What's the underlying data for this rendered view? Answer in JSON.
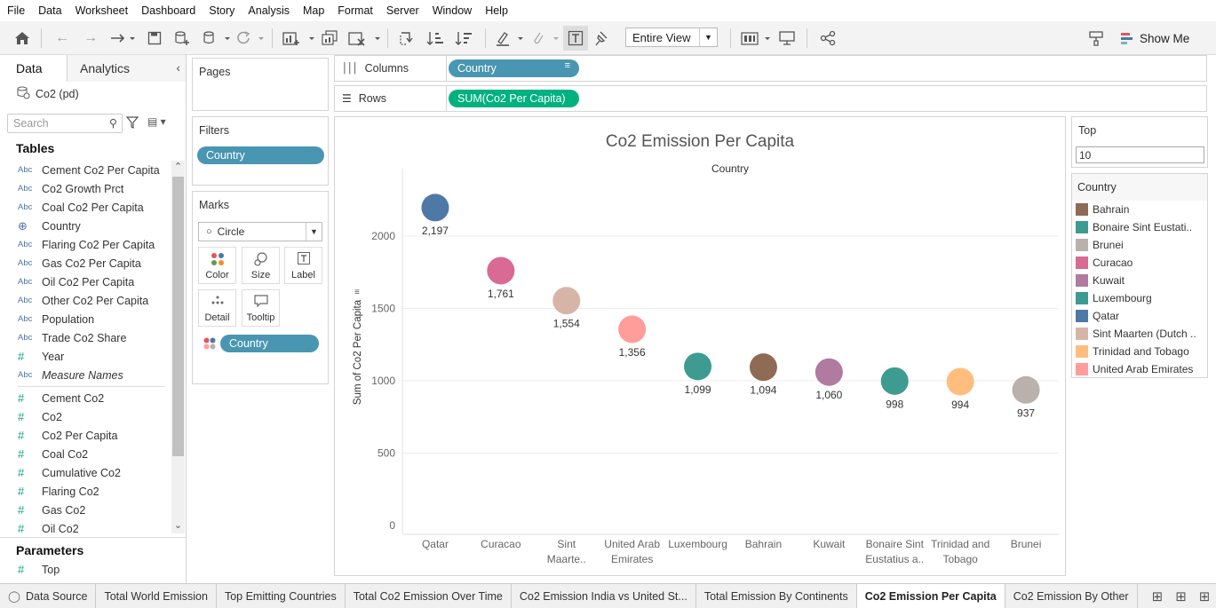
{
  "menu": [
    "File",
    "Data",
    "Worksheet",
    "Dashboard",
    "Story",
    "Analysis",
    "Map",
    "Format",
    "Server",
    "Window",
    "Help"
  ],
  "toolbar": {
    "fit_label": "Entire View",
    "show_me": "Show Me"
  },
  "left_pane": {
    "tab_data": "Data",
    "tab_analytics": "Analytics",
    "datasource": "Co2 (pd)",
    "search_placeholder": "Search",
    "tables_heading": "Tables",
    "fields": [
      {
        "type": "Abc",
        "name": "Cement Co2 Per Capita"
      },
      {
        "type": "Abc",
        "name": "Co2 Growth Prct"
      },
      {
        "type": "Abc",
        "name": "Coal Co2 Per Capita"
      },
      {
        "type": "globe",
        "name": "Country"
      },
      {
        "type": "Abc",
        "name": "Flaring Co2 Per Capita"
      },
      {
        "type": "Abc",
        "name": "Gas Co2 Per Capita"
      },
      {
        "type": "Abc",
        "name": "Oil Co2 Per Capita"
      },
      {
        "type": "Abc",
        "name": "Other Co2 Per Capita"
      },
      {
        "type": "Abc",
        "name": "Population"
      },
      {
        "type": "Abc",
        "name": "Trade Co2 Share"
      },
      {
        "type": "#",
        "name": "Year"
      },
      {
        "type": "Abc",
        "name": "Measure Names",
        "italic": true
      },
      {
        "type": "divider"
      },
      {
        "type": "#",
        "name": "Cement Co2"
      },
      {
        "type": "#",
        "name": "Co2"
      },
      {
        "type": "#",
        "name": "Co2 Per Capita"
      },
      {
        "type": "#",
        "name": "Coal Co2"
      },
      {
        "type": "#",
        "name": "Cumulative Co2"
      },
      {
        "type": "#",
        "name": "Flaring Co2"
      },
      {
        "type": "#",
        "name": "Gas Co2"
      },
      {
        "type": "#",
        "name": "Oil Co2"
      }
    ],
    "parameters_heading": "Parameters",
    "parameter": "Top"
  },
  "pages": {
    "title": "Pages"
  },
  "filters": {
    "title": "Filters",
    "pill": "Country"
  },
  "marks": {
    "title": "Marks",
    "type": "Circle",
    "color": "Color",
    "size": "Size",
    "label": "Label",
    "detail": "Detail",
    "tooltip": "Tooltip",
    "pill": "Country"
  },
  "columns": {
    "label": "Columns",
    "pill": "Country"
  },
  "rows": {
    "label": "Rows",
    "pill": "SUM(Co2 Per Capita)"
  },
  "param_card": {
    "title": "Top",
    "value": "10"
  },
  "legend": {
    "title": "Country",
    "items": [
      {
        "name": "Bahrain",
        "color": "#8f6a55"
      },
      {
        "name": "Bonaire Sint Eustati..",
        "color": "#3d9b92"
      },
      {
        "name": "Brunei",
        "color": "#bab0ac"
      },
      {
        "name": "Curacao",
        "color": "#d86a94"
      },
      {
        "name": "Kuwait",
        "color": "#b07aa1"
      },
      {
        "name": "Luxembourg",
        "color": "#3d9b92"
      },
      {
        "name": "Qatar",
        "color": "#4e79a7"
      },
      {
        "name": "Sint Maarten (Dutch ..",
        "color": "#d7b5a6"
      },
      {
        "name": "Trinidad and Tobago",
        "color": "#ffbe7d"
      },
      {
        "name": "United Arab Emirates",
        "color": "#ff9d9a"
      }
    ]
  },
  "chart_data": {
    "type": "scatter",
    "title": "Co2 Emission Per Capita",
    "column_header": "Country",
    "ylabel": "Sum of Co2 Per Capita",
    "ylim": [
      0,
      2300
    ],
    "yticks": [
      0,
      500,
      1000,
      1500,
      2000
    ],
    "ytick_labels": [
      "0",
      "500",
      "1000",
      "1500",
      "2000"
    ],
    "categories": [
      {
        "name": "Qatar",
        "lines": [
          "Qatar"
        ],
        "value": 2197,
        "label": "2,197",
        "color": "#4e79a7"
      },
      {
        "name": "Curacao",
        "lines": [
          "Curacao"
        ],
        "value": 1761,
        "label": "1,761",
        "color": "#d86a94"
      },
      {
        "name": "Sint Maarten",
        "lines": [
          "Sint",
          "Maarte.."
        ],
        "value": 1554,
        "label": "1,554",
        "color": "#d7b5a6"
      },
      {
        "name": "United Arab Emirates",
        "lines": [
          "United Arab",
          "Emirates"
        ],
        "value": 1356,
        "label": "1,356",
        "color": "#ff9d9a"
      },
      {
        "name": "Luxembourg",
        "lines": [
          "Luxembourg"
        ],
        "value": 1099,
        "label": "1,099",
        "color": "#3d9b92"
      },
      {
        "name": "Bahrain",
        "lines": [
          "Bahrain"
        ],
        "value": 1094,
        "label": "1,094",
        "color": "#8f6a55"
      },
      {
        "name": "Kuwait",
        "lines": [
          "Kuwait"
        ],
        "value": 1060,
        "label": "1,060",
        "color": "#b07aa1"
      },
      {
        "name": "Bonaire Sint Eustatius",
        "lines": [
          "Bonaire Sint",
          "Eustatius a.."
        ],
        "value": 998,
        "label": "998",
        "color": "#3d9b92"
      },
      {
        "name": "Trinidad and Tobago",
        "lines": [
          "Trinidad and",
          "Tobago"
        ],
        "value": 994,
        "label": "994",
        "color": "#ffbe7d"
      },
      {
        "name": "Brunei",
        "lines": [
          "Brunei"
        ],
        "value": 937,
        "label": "937",
        "color": "#bab0ac"
      }
    ]
  },
  "sheet_tabs": {
    "data_source": "Data Source",
    "tabs": [
      "Total World Emission",
      "Top Emitting Countries",
      "Total Co2 Emission Over Time",
      "Co2 Emission India vs United St...",
      "Total Emission By Continents",
      "Co2 Emission Per Capita",
      "Co2 Emission By Other"
    ],
    "active": 5
  }
}
